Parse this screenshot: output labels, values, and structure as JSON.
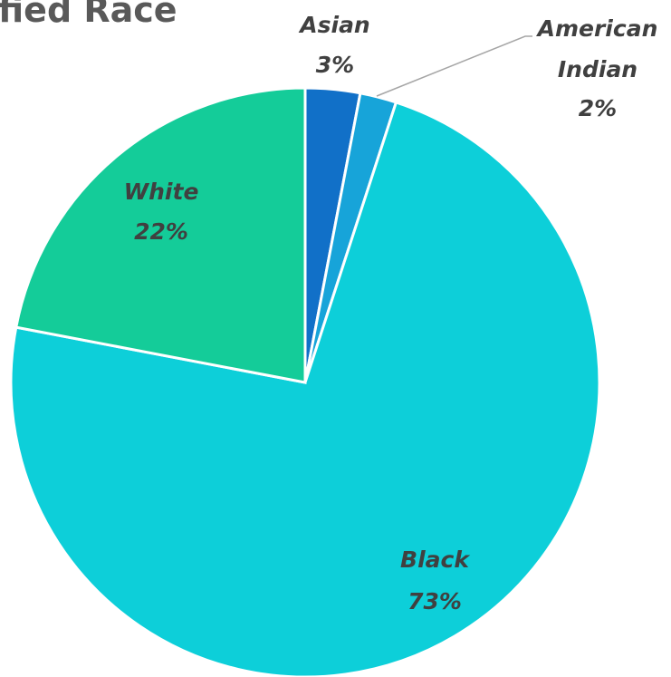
{
  "chart_data": {
    "type": "pie",
    "title": "fied Race",
    "categories": [
      "Asian",
      "American Indian",
      "Black",
      "White"
    ],
    "values": [
      3,
      2,
      73,
      22
    ],
    "value_labels": [
      "3%",
      "2%",
      "73%",
      "22%"
    ],
    "colors": [
      "#1170c8",
      "#17a4d9",
      "#0dcfd9",
      "#14cc99"
    ]
  }
}
